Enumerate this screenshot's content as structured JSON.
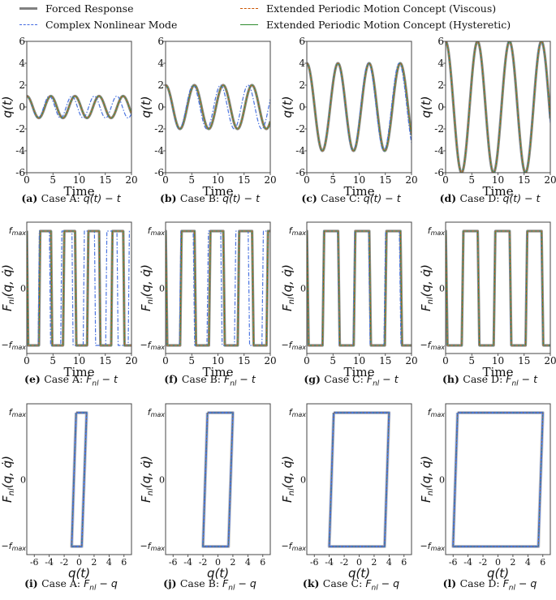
{
  "legend": {
    "items": [
      {
        "label": "Forced Response",
        "color": "#808080",
        "style": "solid-thick"
      },
      {
        "label": "Complex Nonlinear Mode",
        "color": "#4169e1",
        "style": "dashdot"
      },
      {
        "label": "Extended Periodic Motion Concept (Viscous)",
        "color": "#cc5500",
        "style": "dashed"
      },
      {
        "label": "Extended Periodic Motion Concept (Hysteretic)",
        "color": "#2e8b2e",
        "style": "solid"
      }
    ]
  },
  "colors": {
    "forced": "#7f7f7f",
    "cnm": "#4a74e0",
    "epmc_viscous": "#c0601a",
    "epmc_hysteretic": "#2f8f2f",
    "axes": "#444444"
  },
  "chart_data": [
    {
      "id": "a",
      "type": "line",
      "title": "(a) Case A: q(t) − t",
      "caption_tag": "(a)",
      "caption_text": "Case A: ",
      "caption_math": "q(t) − t",
      "xlabel": "Time",
      "ylabel": "q(t)",
      "xlim": [
        0,
        20
      ],
      "ylim": [
        -6,
        6
      ],
      "xticks": [
        0,
        5,
        10,
        15,
        20
      ],
      "yticks": [
        -6,
        -4,
        -2,
        0,
        2,
        4,
        6
      ],
      "amplitude": 1,
      "period_forced": 4.6,
      "period_cnm": 4.3,
      "grid": false
    },
    {
      "id": "b",
      "type": "line",
      "title": "(b) Case B: q(t) − t",
      "caption_tag": "(b)",
      "caption_text": "Case B: ",
      "caption_math": "q(t) − t",
      "xlabel": "Time",
      "ylabel": "q(t)",
      "xlim": [
        0,
        20
      ],
      "ylim": [
        -6,
        6
      ],
      "xticks": [
        0,
        5,
        10,
        15,
        20
      ],
      "yticks": [
        -6,
        -4,
        -2,
        0,
        2,
        4,
        6
      ],
      "amplitude": 2,
      "period_forced": 5.5,
      "period_cnm": 5.25,
      "grid": false
    },
    {
      "id": "c",
      "type": "line",
      "title": "(c) Case C: q(t) − t",
      "caption_tag": "(c)",
      "caption_text": "Case C: ",
      "caption_math": "q(t) − t",
      "xlabel": "Time",
      "ylabel": "q(t)",
      "xlim": [
        0,
        20
      ],
      "ylim": [
        -6,
        6
      ],
      "xticks": [
        0,
        5,
        10,
        15,
        20
      ],
      "yticks": [
        -6,
        -4,
        -2,
        0,
        2,
        4,
        6
      ],
      "amplitude": 4,
      "period_forced": 5.95,
      "period_cnm": 5.88,
      "grid": false
    },
    {
      "id": "d",
      "type": "line",
      "title": "(d) Case D: q(t) − t",
      "caption_tag": "(d)",
      "caption_text": "Case D: ",
      "caption_math": "q(t) − t",
      "xlabel": "Time",
      "ylabel": "q(t)",
      "xlim": [
        0,
        20
      ],
      "ylim": [
        -6,
        6
      ],
      "xticks": [
        0,
        5,
        10,
        15,
        20
      ],
      "yticks": [
        -6,
        -4,
        -2,
        0,
        2,
        4,
        6
      ],
      "amplitude": 6,
      "period_forced": 6.1,
      "period_cnm": 6.08,
      "grid": false
    },
    {
      "id": "e",
      "type": "line",
      "title": "(e) Case A: F_nl − t",
      "caption_tag": "(e)",
      "caption_text": "Case A: ",
      "caption_math": "F_nl − t",
      "xlabel": "Time",
      "ylabel": "F_nl(q, q̇)",
      "xlim": [
        0,
        20
      ],
      "ylim": [
        "-f_max",
        "f_max"
      ],
      "xticks": [
        0,
        5,
        10,
        15,
        20
      ],
      "yticks": [
        "-f_max",
        "0",
        "f_max"
      ],
      "amplitude": 1,
      "period_forced": 4.6,
      "period_cnm": 4.3,
      "grid": false
    },
    {
      "id": "f",
      "type": "line",
      "title": "(f) Case B: F_nl − t",
      "caption_tag": "(f)",
      "caption_text": "Case B: ",
      "caption_math": "F_nl − t",
      "xlabel": "Time",
      "ylabel": "F_nl(q, q̇)",
      "xlim": [
        0,
        20
      ],
      "ylim": [
        "-f_max",
        "f_max"
      ],
      "xticks": [
        0,
        5,
        10,
        15,
        20
      ],
      "yticks": [
        "-f_max",
        "0",
        "f_max"
      ],
      "amplitude": 2,
      "period_forced": 5.5,
      "period_cnm": 5.25,
      "grid": false
    },
    {
      "id": "g",
      "type": "line",
      "title": "(g) Case C: F_nl − t",
      "caption_tag": "(g)",
      "caption_text": "Case C: ",
      "caption_math": "F_nl − t",
      "xlabel": "Time",
      "ylabel": "F_nl(q, q̇)",
      "xlim": [
        0,
        20
      ],
      "ylim": [
        "-f_max",
        "f_max"
      ],
      "xticks": [
        0,
        5,
        10,
        15,
        20
      ],
      "yticks": [
        "-f_max",
        "0",
        "f_max"
      ],
      "amplitude": 4,
      "period_forced": 5.95,
      "period_cnm": 5.88,
      "grid": false
    },
    {
      "id": "h",
      "type": "line",
      "title": "(h) Case D: F_nl − t",
      "caption_tag": "(h)",
      "caption_text": "Case D: ",
      "caption_math": "F_nl − t",
      "xlabel": "Time",
      "ylabel": "F_nl(q, q̇)",
      "xlim": [
        0,
        20
      ],
      "ylim": [
        "-f_max",
        "f_max"
      ],
      "xticks": [
        0,
        5,
        10,
        15,
        20
      ],
      "yticks": [
        "-f_max",
        "0",
        "f_max"
      ],
      "amplitude": 6,
      "period_forced": 6.1,
      "period_cnm": 6.08,
      "grid": false
    },
    {
      "id": "i",
      "type": "line",
      "title": "(i) Case A: F_nl − q",
      "caption_tag": "(i)",
      "caption_text": "Case A: ",
      "caption_math": "F_nl − q",
      "xlabel": "q(t)",
      "ylabel": "F_nl(q, q̇)",
      "xlim": [
        -7,
        7
      ],
      "ylim": [
        "-f_max",
        "f_max"
      ],
      "xticks": [
        -6,
        -4,
        -2,
        0,
        2,
        4,
        6
      ],
      "yticks": [
        "-f_max",
        "0",
        "f_max"
      ],
      "loop": {
        "q_top": [
          -0.4,
          1.0
        ],
        "q_bottom": [
          -1.0,
          0.35
        ]
      },
      "grid": false
    },
    {
      "id": "j",
      "type": "line",
      "title": "(j) Case B: F_nl − q",
      "caption_tag": "(j)",
      "caption_text": "Case B: ",
      "caption_math": "F_nl − q",
      "xlabel": "q(t)",
      "ylabel": "F_nl(q, q̇)",
      "xlim": [
        -7,
        7
      ],
      "ylim": [
        "-f_max",
        "f_max"
      ],
      "xticks": [
        -6,
        -4,
        -2,
        0,
        2,
        4,
        6
      ],
      "yticks": [
        "-f_max",
        "0",
        "f_max"
      ],
      "loop": {
        "q_top": [
          -1.4,
          2.0
        ],
        "q_bottom": [
          -2.0,
          1.4
        ]
      },
      "grid": false
    },
    {
      "id": "k",
      "type": "line",
      "title": "(k) Case C: F_nl − q",
      "caption_tag": "(k)",
      "caption_text": "Case C: ",
      "caption_math": "F_nl − q",
      "xlabel": "q(t)",
      "ylabel": "F_nl(q, q̇)",
      "xlim": [
        -7,
        7
      ],
      "ylim": [
        "-f_max",
        "f_max"
      ],
      "xticks": [
        -6,
        -4,
        -2,
        0,
        2,
        4,
        6
      ],
      "yticks": [
        "-f_max",
        "0",
        "f_max"
      ],
      "loop": {
        "q_top": [
          -3.4,
          4.0
        ],
        "q_bottom": [
          -4.0,
          3.4
        ]
      },
      "grid": false
    },
    {
      "id": "l",
      "type": "line",
      "title": "(l) Case D: F_nl − q",
      "caption_tag": "(l)",
      "caption_text": "Case D: ",
      "caption_math": "F_nl − q",
      "xlabel": "q(t)",
      "ylabel": "F_nl(q, q̇)",
      "xlim": [
        -7,
        7
      ],
      "ylim": [
        "-f_max",
        "f_max"
      ],
      "xticks": [
        -6,
        -4,
        -2,
        0,
        2,
        4,
        6
      ],
      "yticks": [
        "-f_max",
        "0",
        "f_max"
      ],
      "loop": {
        "q_top": [
          -5.4,
          6.0
        ],
        "q_bottom": [
          -6.0,
          5.4
        ]
      },
      "grid": false
    }
  ]
}
